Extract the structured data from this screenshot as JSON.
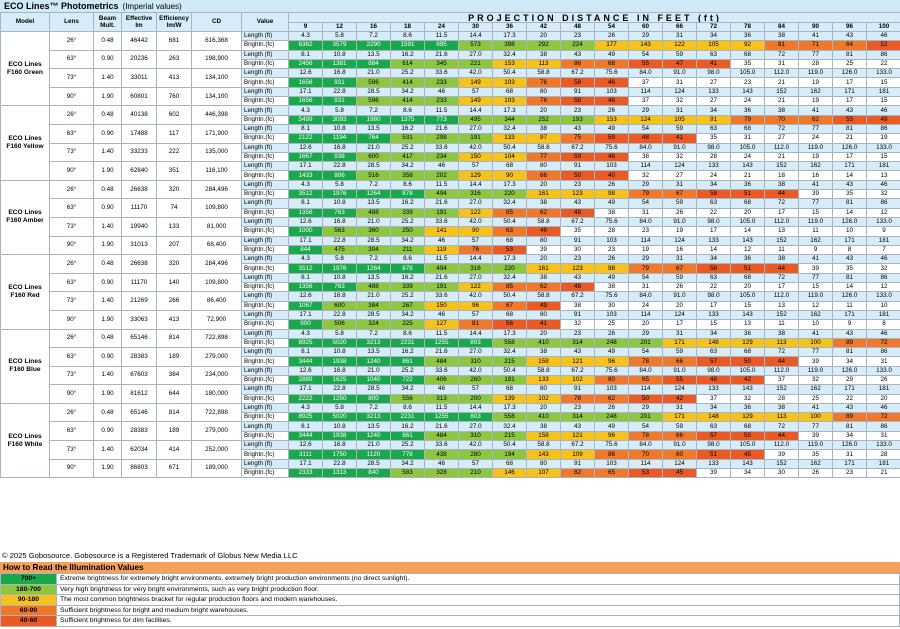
{
  "header": {
    "title": "ECO Lines™ Photometrics",
    "subtitle": "(Imperial values)"
  },
  "table_headers": {
    "model": "Model",
    "lens": "Lens",
    "beam_mult": "Beam Mult.",
    "effective": "Effective lm",
    "efficiency": "Efficiency lm/W",
    "cd": "CD",
    "value": "Value",
    "projection": "PROJECTION DISTANCE IN FEET (ft)",
    "length_label": "Length (ft)",
    "bright_label": "Brightn.(fc)"
  },
  "distances": [
    "9",
    "12",
    "16",
    "18",
    "24",
    "30",
    "36",
    "42",
    "48",
    "54",
    "60",
    "66",
    "72",
    "78",
    "84",
    "90",
    "96",
    "100"
  ],
  "color_scale": {
    "700+": "#1aa84c",
    "180-700": "#8dc63f",
    "90-180": "#f7c21b",
    "60-90": "#f0782a",
    "40-60": "#ea5a24"
  },
  "lens_lengths": {
    "26": [
      "4.3",
      "5.8",
      "7.2",
      "8.6",
      "11.5",
      "14.4",
      "17.3",
      "20",
      "23",
      "26",
      "29",
      "31",
      "34",
      "36",
      "38",
      "41",
      "43",
      "46"
    ],
    "63": [
      "8.1",
      "10.8",
      "13.5",
      "16.2",
      "21.6",
      "27.0",
      "32.4",
      "38",
      "43",
      "49",
      "54",
      "59",
      "63",
      "68",
      "72",
      "77",
      "81",
      "86"
    ],
    "73": [
      "12.6",
      "16.8",
      "21.0",
      "25.2",
      "33.6",
      "42.0",
      "50.4",
      "58.8",
      "67.2",
      "75.6",
      "84.0",
      "91.0",
      "98.0",
      "105.0",
      "112.0",
      "119.0",
      "126.0",
      "133.0"
    ],
    "90": [
      "17.1",
      "22.8",
      "28.5",
      "34.2",
      "46",
      "57",
      "68",
      "80",
      "91",
      "103",
      "114",
      "124",
      "133",
      "143",
      "152",
      "162",
      "171",
      "181"
    ]
  },
  "groups": [
    {
      "model": "ECO Lines F160 Green",
      "rows": [
        {
          "lens": "26°",
          "beam": "0.48",
          "eff": "46442",
          "effic": "681",
          "cd": "616,368",
          "lk": "26",
          "bright": [
            "6362",
            "3579",
            "2290",
            "1591",
            "895",
            "573",
            "398",
            "292",
            "224",
            "177",
            "143",
            "122",
            "105",
            "92",
            "81",
            "71",
            "64",
            "52"
          ]
        },
        {
          "lens": "63°",
          "beam": "0.90",
          "eff": "20236",
          "effic": "263",
          "cd": "198,900",
          "lk": "63",
          "bright": [
            "2456",
            "1381",
            "884",
            "614",
            "345",
            "221",
            "153",
            "113",
            "86",
            "68",
            "55",
            "47",
            "41",
            "35",
            "31",
            "28",
            "25",
            "22"
          ]
        },
        {
          "lens": "73°",
          "beam": "1.40",
          "eff": "33011",
          "effic": "413",
          "cd": "134,100",
          "lk": "73",
          "bright": [
            "1656",
            "931",
            "596",
            "414",
            "233",
            "149",
            "103",
            "76",
            "58",
            "46",
            "37",
            "31",
            "27",
            "23",
            "21",
            "19",
            "17",
            "15"
          ]
        },
        {
          "lens": "90°",
          "beam": "1.90",
          "eff": "60801",
          "effic": "760",
          "cd": "134,100",
          "lk": "90",
          "bright": [
            "1656",
            "931",
            "596",
            "414",
            "233",
            "149",
            "103",
            "76",
            "58",
            "46",
            "37",
            "32",
            "27",
            "24",
            "21",
            "19",
            "17",
            "15"
          ]
        }
      ]
    },
    {
      "model": "ECO Lines F160 Yellow",
      "rows": [
        {
          "lens": "26°",
          "beam": "0.48",
          "eff": "40138",
          "effic": "602",
          "cd": "446,398",
          "lk": "26",
          "bright": [
            "5499",
            "3093",
            "1980",
            "1375",
            "773",
            "495",
            "344",
            "252",
            "193",
            "153",
            "124",
            "105",
            "91",
            "79",
            "70",
            "62",
            "55",
            "49"
          ]
        },
        {
          "lens": "63°",
          "beam": "0.90",
          "eff": "17488",
          "effic": "117",
          "cd": "171,900",
          "lk": "63",
          "bright": [
            "2122",
            "1194",
            "764",
            "531",
            "298",
            "191",
            "133",
            "97",
            "75",
            "59",
            "48",
            "41",
            "35",
            "31",
            "27",
            "24",
            "21",
            "19"
          ]
        },
        {
          "lens": "73°",
          "beam": "1.40",
          "eff": "33233",
          "effic": "222",
          "cd": "135,000",
          "lk": "73",
          "bright": [
            "1667",
            "938",
            "600",
            "417",
            "234",
            "150",
            "104",
            "77",
            "59",
            "46",
            "38",
            "32",
            "28",
            "24",
            "21",
            "19",
            "17",
            "15"
          ]
        },
        {
          "lens": "90°",
          "beam": "1.90",
          "eff": "62840",
          "effic": "351",
          "cd": "116,100",
          "lk": "90",
          "bright": [
            "1433",
            "806",
            "516",
            "358",
            "202",
            "129",
            "90",
            "66",
            "50",
            "40",
            "32",
            "27",
            "24",
            "21",
            "18",
            "16",
            "14",
            "13"
          ]
        }
      ]
    },
    {
      "model": "ECO Lines F160 Amber",
      "rows": [
        {
          "lens": "26°",
          "beam": "0.48",
          "eff": "26638",
          "effic": "320",
          "cd": "284,496",
          "lk": "26",
          "bright": [
            "3512",
            "1976",
            "1264",
            "878",
            "494",
            "316",
            "220",
            "161",
            "123",
            "98",
            "79",
            "67",
            "58",
            "51",
            "44",
            "39",
            "35",
            "32"
          ]
        },
        {
          "lens": "63°",
          "beam": "0.90",
          "eff": "11170",
          "effic": "74",
          "cd": "109,800",
          "lk": "63",
          "bright": [
            "1356",
            "763",
            "488",
            "339",
            "191",
            "122",
            "85",
            "62",
            "48",
            "38",
            "31",
            "26",
            "22",
            "20",
            "17",
            "15",
            "14",
            "12"
          ]
        },
        {
          "lens": "73°",
          "beam": "1.40",
          "eff": "19940",
          "effic": "133",
          "cd": "81,000",
          "lk": "73",
          "bright": [
            "1000",
            "563",
            "360",
            "250",
            "141",
            "90",
            "63",
            "46",
            "35",
            "28",
            "23",
            "19",
            "17",
            "14",
            "13",
            "11",
            "10",
            "9"
          ]
        },
        {
          "lens": "90°",
          "beam": "1.90",
          "eff": "31013",
          "effic": "207",
          "cd": "68,400",
          "lk": "90",
          "bright": [
            "844",
            "475",
            "304",
            "211",
            "119",
            "76",
            "53",
            "39",
            "30",
            "23",
            "19",
            "16",
            "14",
            "12",
            "11",
            "9",
            "8",
            "7"
          ]
        }
      ]
    },
    {
      "model": "ECO Lines F160 Red",
      "rows": [
        {
          "lens": "26°",
          "beam": "0.48",
          "eff": "26638",
          "effic": "320",
          "cd": "284,496",
          "lk": "26",
          "bright": [
            "3512",
            "1976",
            "1264",
            "878",
            "494",
            "316",
            "220",
            "161",
            "123",
            "98",
            "79",
            "67",
            "58",
            "51",
            "44",
            "39",
            "35",
            "32"
          ]
        },
        {
          "lens": "63°",
          "beam": "0.90",
          "eff": "11170",
          "effic": "140",
          "cd": "109,800",
          "lk": "63",
          "bright": [
            "1356",
            "763",
            "488",
            "339",
            "191",
            "122",
            "85",
            "62",
            "48",
            "38",
            "31",
            "26",
            "22",
            "20",
            "17",
            "15",
            "14",
            "12"
          ]
        },
        {
          "lens": "73°",
          "beam": "1.40",
          "eff": "21269",
          "effic": "266",
          "cd": "86,400",
          "lk": "73",
          "bright": [
            "1067",
            "600",
            "384",
            "267",
            "150",
            "96",
            "67",
            "49",
            "38",
            "30",
            "24",
            "20",
            "17",
            "15",
            "13",
            "12",
            "11",
            "10"
          ]
        },
        {
          "lens": "90°",
          "beam": "1.90",
          "eff": "33063",
          "effic": "413",
          "cd": "72,900",
          "lk": "90",
          "bright": [
            "900",
            "506",
            "324",
            "225",
            "127",
            "81",
            "56",
            "41",
            "32",
            "25",
            "20",
            "17",
            "15",
            "13",
            "11",
            "10",
            "9",
            "8"
          ]
        }
      ]
    },
    {
      "model": "ECO Lines F160 Blue",
      "rows": [
        {
          "lens": "26°",
          "beam": "0.48",
          "eff": "65146",
          "effic": "814",
          "cd": "722,898",
          "lk": "26",
          "bright": [
            "8925",
            "5020",
            "3213",
            "2231",
            "1255",
            "803",
            "558",
            "410",
            "314",
            "248",
            "201",
            "171",
            "148",
            "129",
            "113",
            "100",
            "89",
            "72"
          ]
        },
        {
          "lens": "63°",
          "beam": "0.90",
          "eff": "28383",
          "effic": "189",
          "cd": "279,000",
          "lk": "63",
          "bright": [
            "3444",
            "1938",
            "1240",
            "861",
            "484",
            "310",
            "215",
            "158",
            "121",
            "96",
            "78",
            "66",
            "57",
            "50",
            "44",
            "39",
            "34",
            "31"
          ]
        },
        {
          "lens": "73°",
          "beam": "1.40",
          "eff": "67603",
          "effic": "384",
          "cd": "234,000",
          "lk": "73",
          "bright": [
            "2889",
            "1625",
            "1040",
            "722",
            "406",
            "260",
            "181",
            "133",
            "102",
            "80",
            "65",
            "55",
            "48",
            "42",
            "37",
            "32",
            "29",
            "26"
          ]
        },
        {
          "lens": "90°",
          "beam": "1.90",
          "eff": "81612",
          "effic": "644",
          "cd": "180,000",
          "lk": "90",
          "bright": [
            "2222",
            "1250",
            "800",
            "556",
            "313",
            "200",
            "139",
            "102",
            "78",
            "62",
            "50",
            "42",
            "37",
            "32",
            "28",
            "25",
            "22",
            "20"
          ]
        }
      ]
    },
    {
      "model": "ECO Lines F160 White",
      "rows": [
        {
          "lens": "26°",
          "beam": "0.48",
          "eff": "65146",
          "effic": "814",
          "cd": "722,898",
          "lk": "26",
          "bright": [
            "8925",
            "5020",
            "3213",
            "2231",
            "1255",
            "803",
            "558",
            "410",
            "314",
            "248",
            "201",
            "171",
            "148",
            "129",
            "113",
            "100",
            "89",
            "72"
          ]
        },
        {
          "lens": "63°",
          "beam": "0.90",
          "eff": "28383",
          "effic": "189",
          "cd": "279,000",
          "lk": "63",
          "bright": [
            "3444",
            "1938",
            "1240",
            "861",
            "484",
            "310",
            "215",
            "158",
            "121",
            "96",
            "78",
            "66",
            "57",
            "50",
            "44",
            "39",
            "34",
            "31"
          ]
        },
        {
          "lens": "73°",
          "beam": "1.40",
          "eff": "62034",
          "effic": "414",
          "cd": "252,000",
          "lk": "73",
          "bright": [
            "3111",
            "1750",
            "1120",
            "778",
            "438",
            "280",
            "194",
            "143",
            "109",
            "86",
            "70",
            "60",
            "51",
            "45",
            "39",
            "35",
            "31",
            "28"
          ]
        },
        {
          "lens": "90°",
          "beam": "1.90",
          "eff": "86803",
          "effic": "671",
          "cd": "189,000",
          "lk": "90",
          "bright": [
            "2333",
            "1313",
            "840",
            "583",
            "328",
            "210",
            "146",
            "107",
            "82",
            "65",
            "53",
            "45",
            "39",
            "34",
            "30",
            "26",
            "23",
            "21"
          ]
        }
      ]
    }
  ],
  "footer": {
    "copyright": "© 2025 Gobosource. Gobosource  is a Registered Trademark of Globus New Media LLC",
    "legend_title": "How to Read the Illumination Values",
    "legend": [
      {
        "range": "700+",
        "text": "Extreme brightness for extremely bright environments, extremely bright production environments (no direct sunlight).",
        "color": "#1aa84c"
      },
      {
        "range": "180-700",
        "text": "Very high brightness for very bright environments, such as very bright production floor.",
        "color": "#8dc63f"
      },
      {
        "range": "90-180",
        "text": "The most common brightness bracket for regular production floors and modern warehouses.",
        "color": "#f7c21b"
      },
      {
        "range": "60-90",
        "text": "Sufficient brightness for bright and medium bright warehouses.",
        "color": "#f0782a"
      },
      {
        "range": "40-60",
        "text": "Sufficient brightness for dim facilities.",
        "color": "#ea5a24"
      }
    ]
  }
}
